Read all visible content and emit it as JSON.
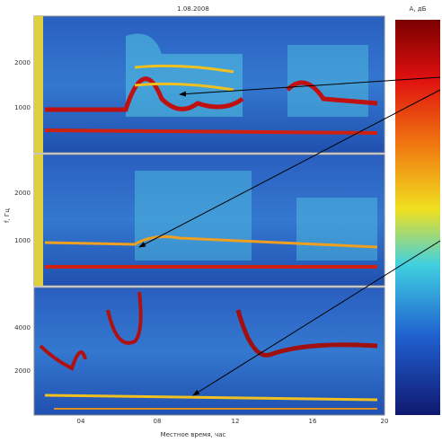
{
  "figure": {
    "title": "1.08.2008",
    "colorbar_label": "A, дБ",
    "y_label": "f, Гц",
    "x_label": "Местное время, час",
    "panels": [
      {
        "y_tick_labels": [
          "2000",
          "1000"
        ]
      },
      {
        "y_tick_labels": [
          "2000",
          "1000"
        ]
      },
      {
        "y_tick_labels": [
          "4000",
          "2000"
        ]
      }
    ],
    "x_tick_labels": [
      "04",
      "08",
      "12",
      "16",
      "20"
    ]
  }
}
